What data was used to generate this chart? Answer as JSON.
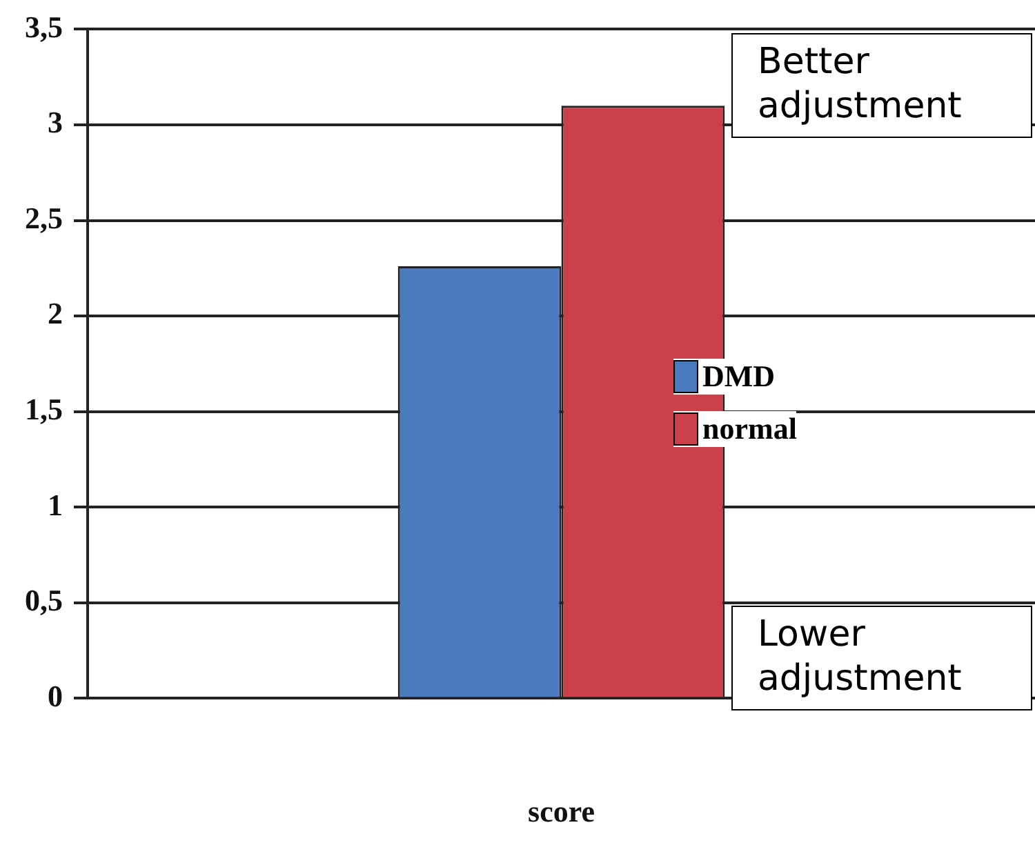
{
  "chart_data": {
    "type": "bar",
    "xlabel": "score",
    "categories": [
      null
    ],
    "series": [
      {
        "name": "DMD",
        "color": "#4a7bbf",
        "values": [
          2.26
        ]
      },
      {
        "name": "normal",
        "color": "#cc4049",
        "values": [
          3.1
        ]
      }
    ],
    "ylim": [
      0,
      3.5
    ],
    "yticks": [
      {
        "value": 0,
        "label": "0"
      },
      {
        "value": 0.5,
        "label": "0,5"
      },
      {
        "value": 1,
        "label": "1"
      },
      {
        "value": 1.5,
        "label": "1,5"
      },
      {
        "value": 2,
        "label": "2"
      },
      {
        "value": 2.5,
        "label": "2,5"
      },
      {
        "value": 3,
        "label": "3"
      },
      {
        "value": 3.5,
        "label": "3,5"
      }
    ],
    "grid": "y",
    "legend": "right",
    "annotations": [
      "Better adjustment",
      "Lower adjustment"
    ]
  }
}
